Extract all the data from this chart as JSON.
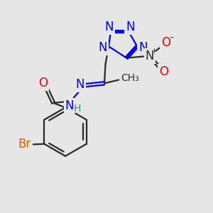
{
  "background_color": "#e6e6e6",
  "bond_color": "#2a2a2a",
  "blue_color": "#0000ee",
  "red_color": "#ee0000",
  "teal_color": "#3a8a8a",
  "orange_color": "#cc6600",
  "figsize": [
    3.0,
    3.0
  ],
  "dpi": 100,
  "xlim": [
    0,
    10
  ],
  "ylim": [
    0,
    10
  ]
}
